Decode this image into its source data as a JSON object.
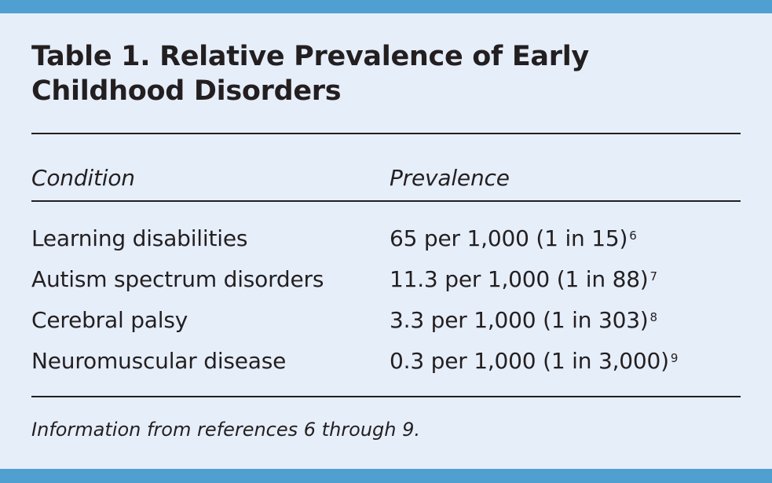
{
  "title": "Table 1. Relative Prevalence of Early Childhood Disorders",
  "columns": [
    "Condition",
    "Prevalence"
  ],
  "rows": [
    {
      "condition": "Learning disabilities",
      "prevalence": "65 per 1,000 (1 in 15)",
      "ref": "6"
    },
    {
      "condition": "Autism spectrum disorders",
      "prevalence": "11.3 per 1,000 (1 in 88)",
      "ref": "7"
    },
    {
      "condition": "Cerebral palsy",
      "prevalence": "3.3 per 1,000 (1 in 303)",
      "ref": "8"
    },
    {
      "condition": "Neuromuscular disease",
      "prevalence": "0.3 per 1,000 (1 in 3,000)",
      "ref": "9"
    }
  ],
  "footnote": "Information from references 6 through 9.",
  "colors": {
    "accent": "#4f9fd1",
    "background": "#e6eefa"
  }
}
